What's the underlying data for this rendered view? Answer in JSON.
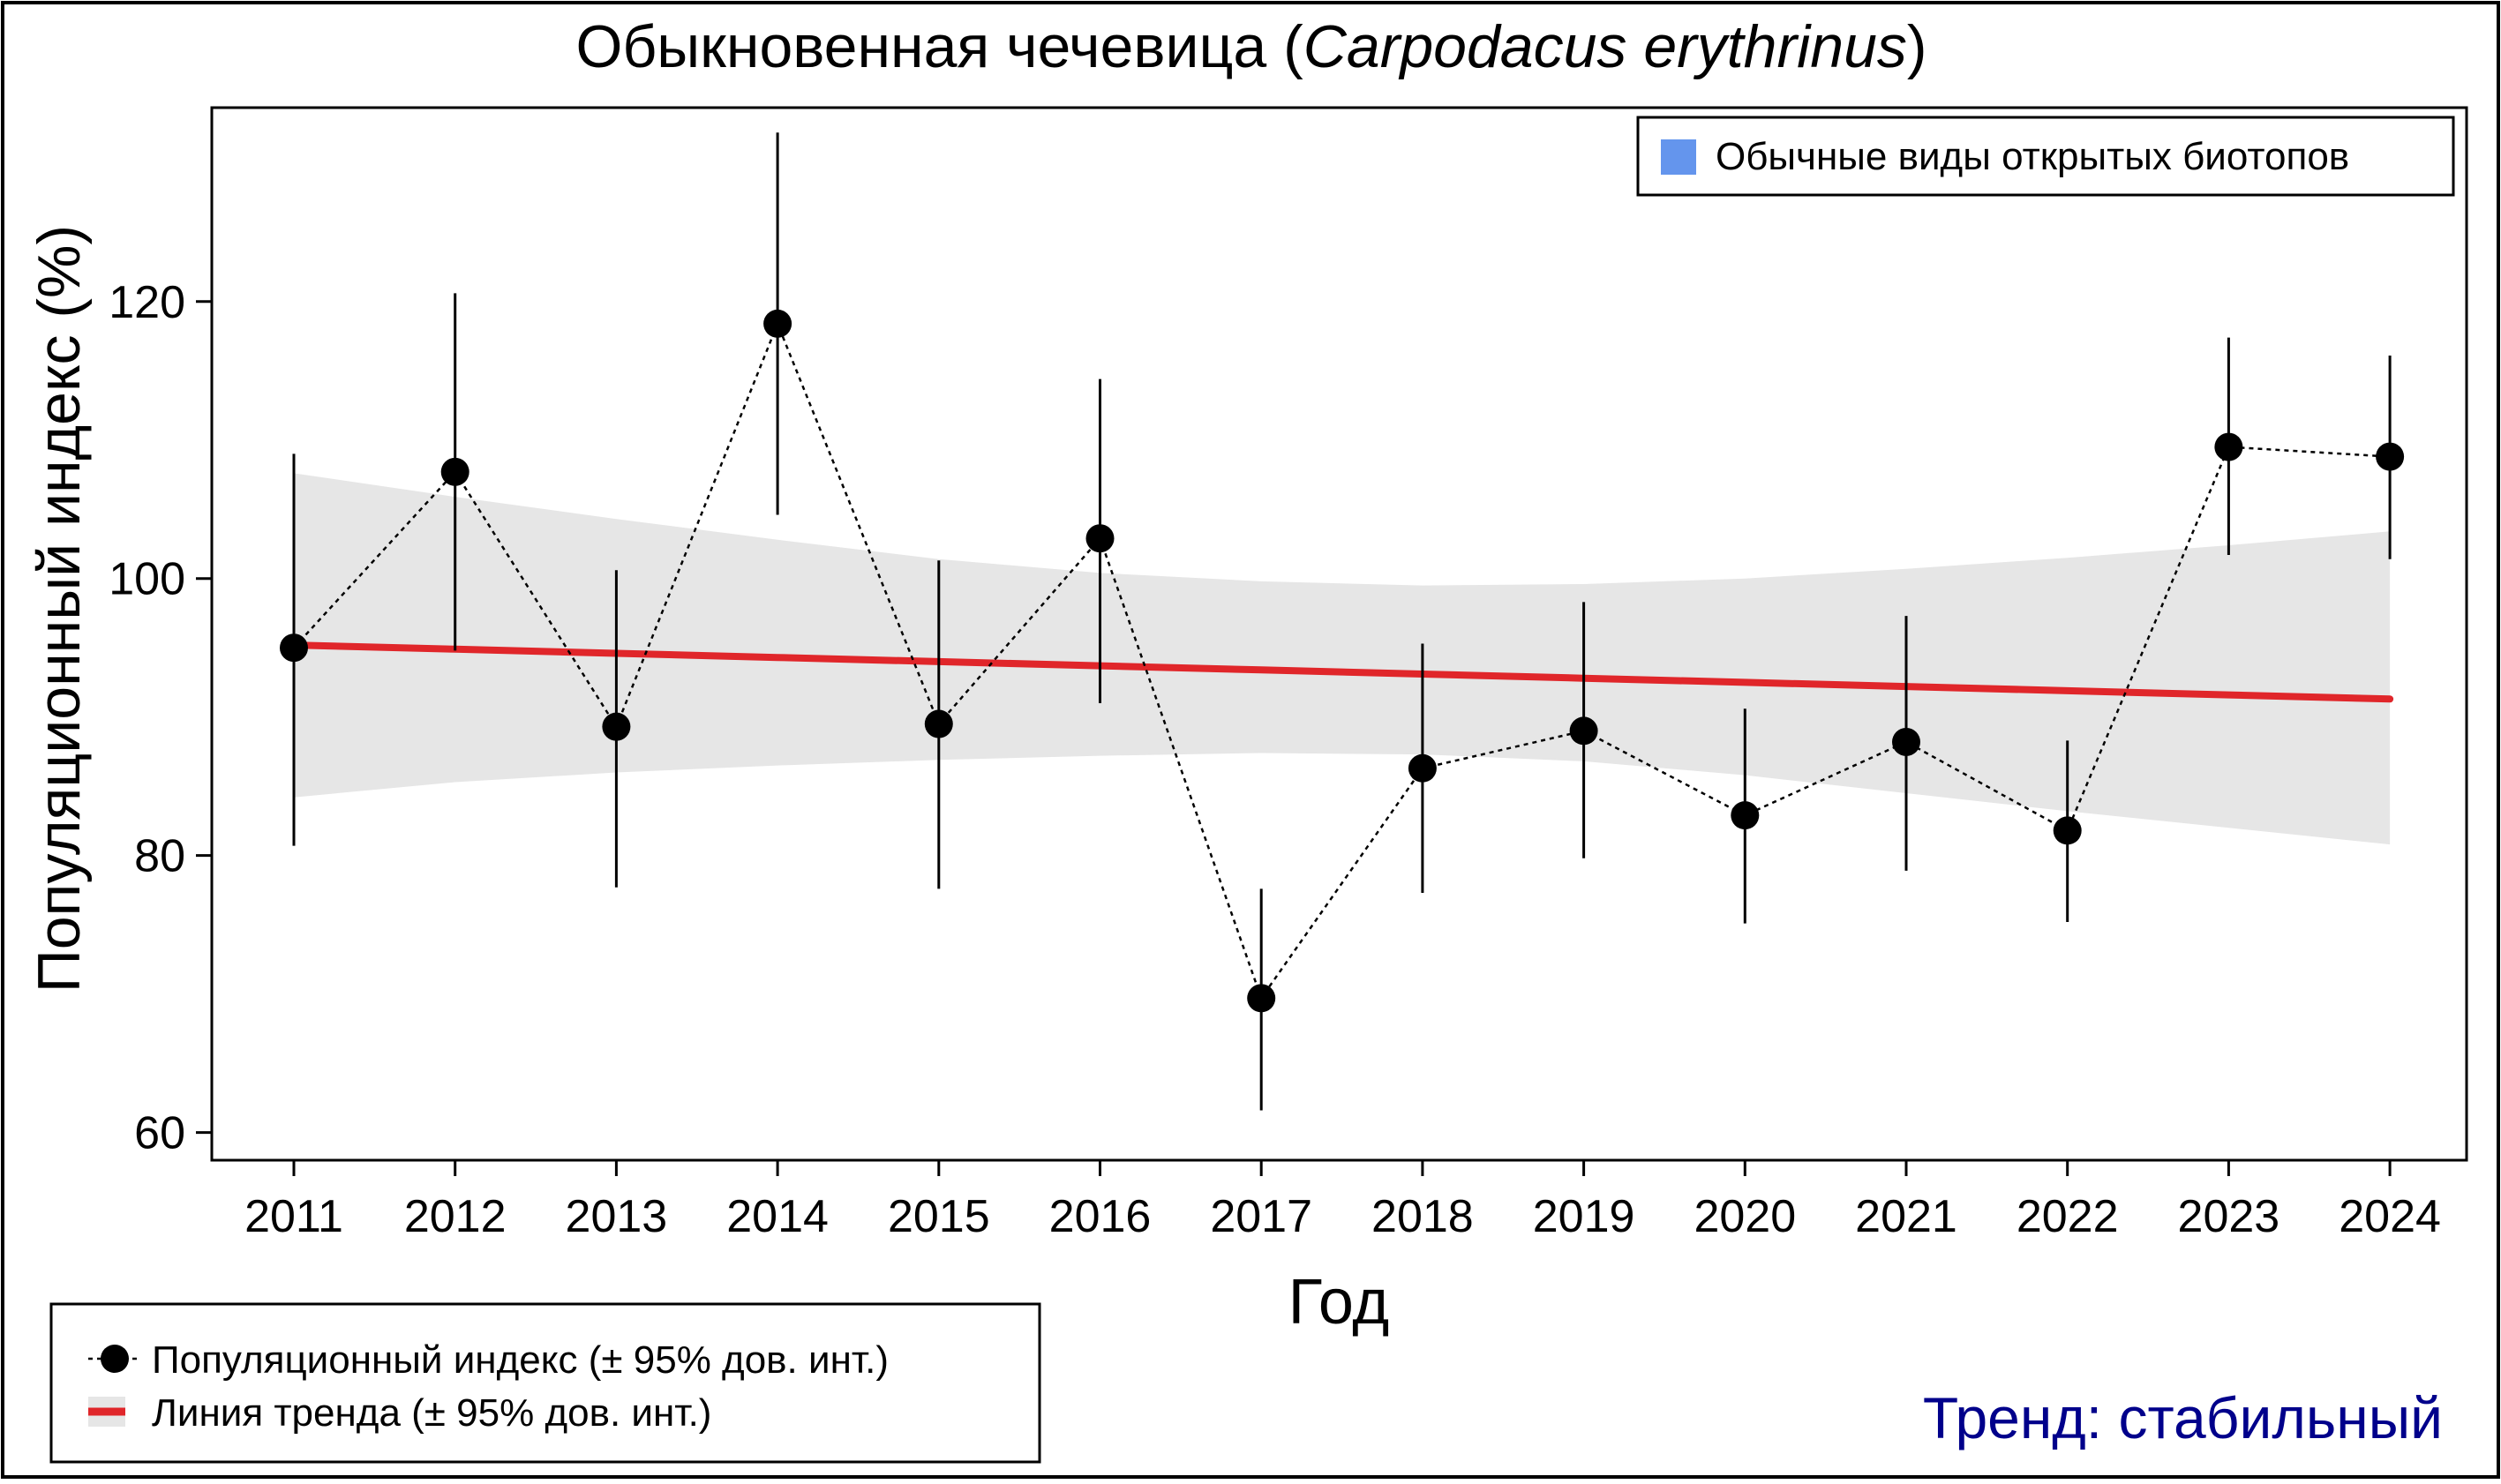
{
  "chart_data": {
    "type": "line",
    "title": {
      "main": "Обыкновенная чечевица (",
      "species": "Carpodacus erythrinus",
      "close": ")"
    },
    "xlabel": "Год",
    "ylabel": "Популяционный индекс (%)",
    "x": [
      2011,
      2012,
      2013,
      2014,
      2015,
      2016,
      2017,
      2018,
      2019,
      2020,
      2021,
      2022,
      2023,
      2024
    ],
    "x_tick_labels": [
      "2011",
      "2012",
      "2013",
      "2014",
      "2015",
      "2016",
      "2017",
      "2018",
      "2019",
      "2020",
      "2021",
      "2022",
      "2023",
      "2024"
    ],
    "ylim": [
      58,
      134
    ],
    "y_ticks": [
      60,
      80,
      100,
      120
    ],
    "y_tick_labels": [
      "60",
      "80",
      "100",
      "120"
    ],
    "series": [
      {
        "name": "Популяционный индекс (± 95% дов. инт.)",
        "values": [
          95.0,
          107.7,
          89.3,
          118.4,
          89.5,
          102.9,
          69.7,
          86.3,
          89.0,
          82.9,
          88.2,
          81.8,
          109.5,
          108.8
        ],
        "ci_low": [
          80.7,
          94.8,
          77.7,
          104.6,
          77.6,
          91.0,
          61.6,
          77.3,
          79.8,
          75.1,
          78.9,
          75.2,
          101.7,
          101.4
        ],
        "ci_high": [
          109.0,
          120.6,
          100.6,
          132.2,
          101.3,
          114.4,
          77.6,
          95.3,
          98.3,
          90.6,
          97.3,
          88.3,
          117.4,
          116.1
        ],
        "color": "#000000"
      },
      {
        "name": "Линия тренда (± 95% дов. инт.)",
        "values": [
          95.2,
          94.9,
          94.6,
          94.3,
          94.0,
          93.7,
          93.4,
          93.1,
          92.8,
          92.5,
          92.2,
          91.9,
          91.6,
          91.3
        ],
        "band_low": [
          84.2,
          85.3,
          86.0,
          86.5,
          86.9,
          87.2,
          87.4,
          87.3,
          86.8,
          85.8,
          84.5,
          83.2,
          82.0,
          80.8
        ],
        "band_high": [
          107.6,
          105.9,
          104.3,
          102.8,
          101.4,
          100.4,
          99.8,
          99.5,
          99.6,
          100.0,
          100.7,
          101.5,
          102.4,
          103.4
        ],
        "color": "#e0262a",
        "band_color": "#e6e6e6"
      }
    ],
    "legend_bottom": {
      "position": "bottom-left",
      "entries": [
        "Популяционный индекс (± 95% дов. инт.)",
        "Линия тренда (± 95% дов. инт.)"
      ]
    },
    "legend_top": {
      "position": "top-right",
      "label": "Обычные виды открытых биотопов",
      "color": "#6495ed"
    },
    "annotation": {
      "text": "Тренд: стабильный",
      "color": "#00008b"
    }
  }
}
